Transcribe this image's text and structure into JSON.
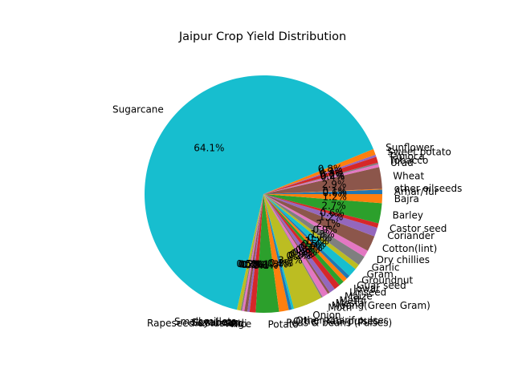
{
  "chart_data": {
    "type": "pie",
    "title": "Jaipur Crop Yield Distribution",
    "slices": [
      {
        "label": "Arhar/Tur",
        "value": 0.6,
        "color": "#1f77b4",
        "pct_label": "0.6%"
      },
      {
        "label": "other oilseeds",
        "value": 0.1,
        "color": "#ff7f0e",
        "pct_label": "0.1%"
      },
      {
        "label": "Wheat",
        "value": 2.9,
        "color": "#8c564b",
        "pct_label": "2.9%"
      },
      {
        "label": "Urad",
        "value": 0.4,
        "color": "#e377c2",
        "pct_label": "0.4%"
      },
      {
        "label": "Tobacco",
        "value": 0.2,
        "color": "#7f7f7f",
        "pct_label": "0.2%"
      },
      {
        "label": "Tapioca",
        "value": 0.8,
        "color": "#d62728",
        "pct_label": "0.8%"
      },
      {
        "label": "Sweet potato",
        "value": 0.3,
        "color": "#9467bd",
        "pct_label": "0.3%"
      },
      {
        "label": "Sunflower",
        "value": 0.8,
        "color": "#ff7f0e",
        "pct_label": "0.8%"
      },
      {
        "label": "Sugarcane",
        "value": 64.1,
        "color": "#17becf",
        "pct_label": "64.1%"
      },
      {
        "label": "Small millets",
        "value": 0.5,
        "color": "#bcbd22",
        "pct_label": "0.5%"
      },
      {
        "label": "Soyabean",
        "value": 0.2,
        "color": "#7f7f7f",
        "pct_label": "0.2%"
      },
      {
        "label": "Sesamum",
        "value": 0.3,
        "color": "#e377c2",
        "pct_label": "0.3%"
      },
      {
        "label": "Rapeseed &Mustard",
        "value": 0.4,
        "color": "#8c564b",
        "pct_label": "0.4%"
      },
      {
        "label": "Ragi",
        "value": 0.3,
        "color": "#9467bd",
        "pct_label": "0.3%"
      },
      {
        "label": "Rice",
        "value": 0.8,
        "color": "#d62728",
        "pct_label": "0.8%"
      },
      {
        "label": "Potato",
        "value": 3.1,
        "color": "#2ca02c",
        "pct_label": "3.1%"
      },
      {
        "label": "Peas & beans (Pulses)",
        "value": 1.3,
        "color": "#ff7f0e",
        "pct_label": "1.3%"
      },
      {
        "label": "Other Rabi pulses",
        "value": 0.4,
        "color": "#1f77b4",
        "pct_label": "0.4%"
      },
      {
        "label": "Other Kharif pulses",
        "value": 0.3,
        "color": "#17becf",
        "pct_label": "0.3%"
      },
      {
        "label": "Onion",
        "value": 3.9,
        "color": "#bcbd22",
        "pct_label": "3.9%"
      },
      {
        "label": "Moth",
        "value": 0.2,
        "color": "#7f7f7f",
        "pct_label": "0.2%"
      },
      {
        "label": "Moong(Green Gram)",
        "value": 0.8,
        "color": "#e377c2",
        "pct_label": "0.8%"
      },
      {
        "label": "Mesta",
        "value": 0.3,
        "color": "#8c564b",
        "pct_label": "0.3%"
      },
      {
        "label": "Methi",
        "value": 0.8,
        "color": "#9467bd",
        "pct_label": "0.8%"
      },
      {
        "label": "Maize",
        "value": 0.8,
        "color": "#d62728",
        "pct_label": "0.8%"
      },
      {
        "label": "Linseed",
        "value": 0.7,
        "color": "#2ca02c",
        "pct_label": "0.7%"
      },
      {
        "label": "Jowar",
        "value": 0.6,
        "color": "#ff7f0e",
        "pct_label": "0.6%"
      },
      {
        "label": "Guar seed",
        "value": 0.5,
        "color": "#1f77b4",
        "pct_label": "0.5%"
      },
      {
        "label": "Groundnut",
        "value": 1.2,
        "color": "#17becf",
        "pct_label": "1.2%"
      },
      {
        "label": "Gram",
        "value": 0.7,
        "color": "#bcbd22",
        "pct_label": "0.7%"
      },
      {
        "label": "Garlic",
        "value": 1.3,
        "color": "#7f7f7f",
        "pct_label": "1.3%"
      },
      {
        "label": "Dry chillies",
        "value": 0.9,
        "color": "#e377c2",
        "pct_label": "0.9%"
      },
      {
        "label": "Cotton(lint)",
        "value": 2.1,
        "color": "#8c564b",
        "pct_label": "2.1%"
      },
      {
        "label": "Coriander",
        "value": 1.2,
        "color": "#9467bd",
        "pct_label": "1.2%"
      },
      {
        "label": "Castor seed",
        "value": 0.6,
        "color": "#d62728",
        "pct_label": "0.6%"
      },
      {
        "label": "Barley",
        "value": 2.7,
        "color": "#2ca02c",
        "pct_label": "2.7%"
      },
      {
        "label": "Bajra",
        "value": 1.2,
        "color": "#ff7f0e",
        "pct_label": "1.2%"
      }
    ]
  }
}
